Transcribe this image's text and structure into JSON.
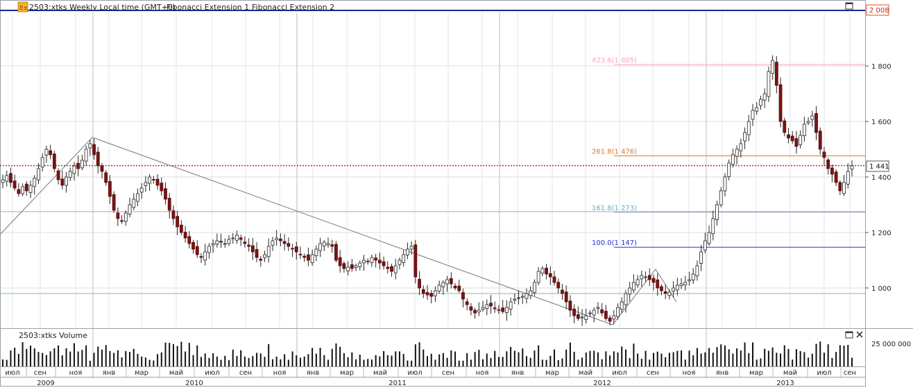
{
  "header": {
    "app_icon": "chart-app-icon",
    "title": "2503:xtks Weekly Local time (GMT+0)",
    "menus": [
      "Fibonacci Extension 1",
      "Fibonacci Extension 2"
    ],
    "maximize_icon": "maximize-icon"
  },
  "volume_panel": {
    "title": "2503:xtks Volume",
    "axis_label": "25 000 000",
    "maximize_icon": "maximize-icon",
    "close_icon": "close-icon"
  },
  "price_axis": {
    "ticks": [
      {
        "v": 1000,
        "label": "1 000"
      },
      {
        "v": 1200,
        "label": "1 200"
      },
      {
        "v": 1400,
        "label": "1 400"
      },
      {
        "v": 1600,
        "label": "1 600"
      },
      {
        "v": 1800,
        "label": "1 800"
      }
    ],
    "top_badge": "2 008",
    "current_badge": "1 441"
  },
  "time_axis": {
    "months": [
      "июл",
      "сен",
      "ноя",
      "янв",
      "мар",
      "май",
      "июл",
      "сен",
      "ноя",
      "янв",
      "мар",
      "май",
      "июл",
      "сен",
      "ноя",
      "янв",
      "мар",
      "май",
      "июл",
      "сен",
      "ноя",
      "янв",
      "мар",
      "май",
      "июл",
      "сен"
    ],
    "years": [
      "2009",
      "2010",
      "2011",
      "2012",
      "2013"
    ]
  },
  "fibonacci_levels": [
    {
      "label": "423.6(1 805)",
      "value": 1805,
      "color": "#f4a8b0"
    },
    {
      "label": "261.8(1 476)",
      "value": 1476,
      "color": "#d7762a"
    },
    {
      "label": "161.8(1 273)",
      "value": 1273,
      "color": "#6aa7c8"
    },
    {
      "label": "100.0(1 147)",
      "value": 1147,
      "color": "#2233cc"
    }
  ],
  "chart_data": {
    "type": "candlestick",
    "title": "2503:xtks Weekly",
    "price_range": [
      870,
      2008
    ],
    "weeks_range": [
      "2009-06",
      "2013-09"
    ],
    "anchor_path": [
      {
        "date": "2009-05",
        "price": 1180
      },
      {
        "date": "2009-12",
        "price": 1540
      },
      {
        "date": "2012-06",
        "price": 870
      },
      {
        "date": "2012-10",
        "price": 1060
      },
      {
        "date": "2012-11",
        "price": 960
      }
    ],
    "horizontal_levels": {
      "top": 2008,
      "current": 1441,
      "lower_support": 980,
      "mid_support": 1275
    },
    "price_series": [
      1390,
      1405,
      1380,
      1360,
      1340,
      1365,
      1350,
      1370,
      1395,
      1430,
      1470,
      1500,
      1480,
      1430,
      1390,
      1370,
      1400,
      1420,
      1440,
      1430,
      1460,
      1500,
      1520,
      1480,
      1440,
      1420,
      1380,
      1330,
      1280,
      1250,
      1240,
      1270,
      1300,
      1320,
      1340,
      1360,
      1380,
      1400,
      1390,
      1370,
      1350,
      1320,
      1280,
      1250,
      1220,
      1200,
      1180,
      1160,
      1140,
      1120,
      1110,
      1130,
      1150,
      1160,
      1170,
      1165,
      1160,
      1175,
      1180,
      1190,
      1175,
      1160,
      1150,
      1130,
      1110,
      1100,
      1120,
      1150,
      1170,
      1180,
      1170,
      1160,
      1150,
      1140,
      1130,
      1120,
      1110,
      1100,
      1120,
      1140,
      1160,
      1165,
      1160,
      1150,
      1100,
      1080,
      1070,
      1075,
      1070,
      1080,
      1090,
      1100,
      1095,
      1110,
      1100,
      1090,
      1080,
      1070,
      1060,
      1080,
      1100,
      1120,
      1140,
      1150,
      1040,
      1000,
      980,
      975,
      970,
      990,
      1010,
      1020,
      1030,
      1015,
      1000,
      990,
      960,
      940,
      920,
      910,
      920,
      930,
      940,
      935,
      925,
      920,
      915,
      930,
      950,
      960,
      965,
      970,
      980,
      990,
      1020,
      1060,
      1070,
      1050,
      1040,
      1020,
      1000,
      980,
      950,
      920,
      900,
      890,
      895,
      900,
      910,
      920,
      930,
      910,
      890,
      880,
      900,
      930,
      950,
      980,
      1000,
      1020,
      1030,
      1045,
      1040,
      1030,
      1020,
      1000,
      990,
      980,
      985,
      1000,
      1010,
      1015,
      1020,
      1030,
      1050,
      1080,
      1130,
      1170,
      1200,
      1250,
      1300,
      1350,
      1400,
      1450,
      1480,
      1500,
      1520,
      1560,
      1600,
      1640,
      1650,
      1680,
      1700,
      1780,
      1820,
      1730,
      1600,
      1560,
      1540,
      1530,
      1510,
      1550,
      1590,
      1600,
      1620,
      1560,
      1500,
      1470,
      1430,
      1410,
      1380,
      1350,
      1380,
      1420,
      1440
    ]
  }
}
